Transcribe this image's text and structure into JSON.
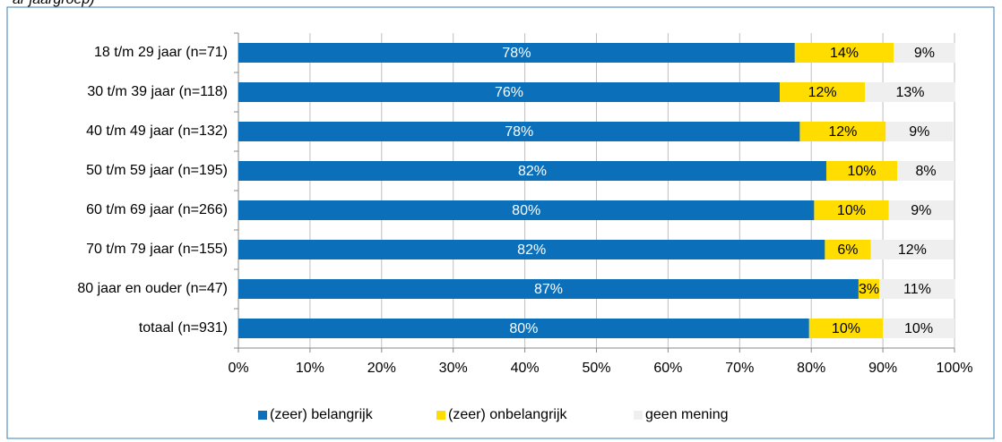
{
  "chart_data": {
    "type": "stacked_barh",
    "subtitle": "ar jaargroep)",
    "categories": [
      "18 t/m 29 jaar (n=71)",
      "30 t/m 39 jaar (n=118)",
      "40 t/m 49 jaar (n=132)",
      "50 t/m 59 jaar (n=195)",
      "60 t/m 69 jaar (n=266)",
      "70 t/m 79 jaar (n=155)",
      "80 jaar en ouder (n=47)",
      "totaal (n=931)"
    ],
    "series": [
      {
        "name": "(zeer) belangrijk",
        "color": "#0b6fba",
        "values": [
          77.7,
          75.6,
          78.4,
          82.1,
          80.4,
          81.9,
          86.6,
          79.7
        ],
        "value_labels": [
          "78%",
          "76%",
          "78%",
          "82%",
          "80%",
          "82%",
          "87%",
          "80%"
        ]
      },
      {
        "name": "(zeer) onbelangrijk",
        "color": "#ffdd00",
        "values": [
          13.8,
          11.9,
          12.0,
          9.9,
          10.4,
          6.4,
          2.9,
          10.3
        ],
        "value_labels": [
          "14%",
          "12%",
          "12%",
          "10%",
          "10%",
          "6%",
          "3%",
          "10%"
        ]
      },
      {
        "name": "geen mening",
        "color": "#efefef",
        "values": [
          8.6,
          12.6,
          9.4,
          8.0,
          9.1,
          11.6,
          10.6,
          10.0
        ],
        "value_labels": [
          "9%",
          "13%",
          "9%",
          "8%",
          "9%",
          "12%",
          "11%",
          "10%"
        ]
      }
    ],
    "xlim": [
      0,
      100
    ],
    "xticks": [
      {
        "value": 0,
        "label": "0%"
      },
      {
        "value": 10,
        "label": "10%"
      },
      {
        "value": 20,
        "label": "20%"
      },
      {
        "value": 30,
        "label": "30%"
      },
      {
        "value": 40,
        "label": "40%"
      },
      {
        "value": 50,
        "label": "50%"
      },
      {
        "value": 60,
        "label": "60%"
      },
      {
        "value": 70,
        "label": "70%"
      },
      {
        "value": 80,
        "label": "80%"
      },
      {
        "value": 90,
        "label": "90%"
      },
      {
        "value": 100,
        "label": "100%"
      }
    ],
    "grid": true,
    "legend": "bottom"
  }
}
